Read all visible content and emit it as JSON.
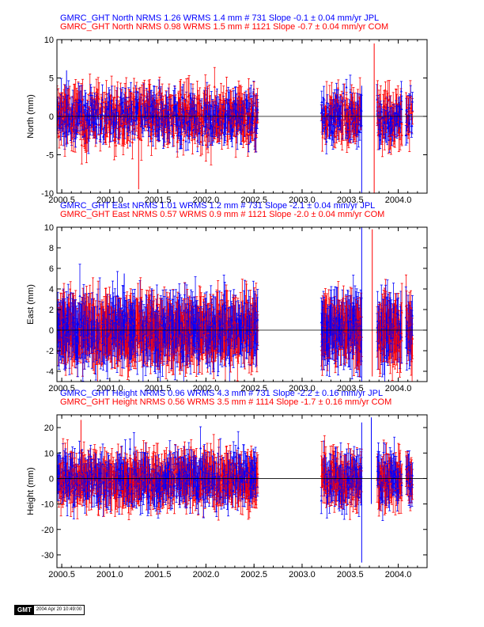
{
  "colors": {
    "series_a": "#0000ff",
    "series_b": "#ff0000",
    "axis": "#000000"
  },
  "footer": {
    "logo": "GMT",
    "timestamp": "2004 Apr 20 10:49:00"
  },
  "chart_data": [
    {
      "type": "scatter",
      "panel": "north",
      "title_lines": [
        "GMRC_GHT North NRMS 1.26 WRMS  1.4 mm # 731 Slope   -0.1 ±  0.04 mm/yr JPL",
        "GMRC_GHT North NRMS 0.98 WRMS  1.5 mm # 1121 Slope  -0.7 ±  0.04 mm/yr COM"
      ],
      "xlabel": "",
      "ylabel": "North (mm)",
      "xlim": [
        2000.45,
        2004.3
      ],
      "ylim": [
        -10,
        10
      ],
      "x_ticks": [
        "2000.5",
        "2001.0",
        "2001.5",
        "2002.0",
        "2002.5",
        "2003.0",
        "2003.5",
        "2004.0"
      ],
      "y_ticks": [
        "-10",
        "-5",
        "0",
        "5",
        "10"
      ],
      "zero_line": true,
      "data_segments": [
        [
          2000.45,
          2002.54
        ],
        [
          2003.2,
          2003.62
        ],
        [
          2003.78,
          2004.04
        ],
        [
          2004.08,
          2004.15
        ]
      ],
      "series": [
        {
          "name": "JPL",
          "color": "#0000ff",
          "scatter": 1.4,
          "errbar": 1.6
        },
        {
          "name": "COM",
          "color": "#ff0000",
          "scatter": 1.5,
          "errbar": 2.0
        }
      ],
      "annotations": {
        "spikes": [
          {
            "x": 2001.3,
            "low": -9.5,
            "high": 1.0,
            "series": "COM"
          },
          {
            "x": 2003.62,
            "low": -10.0,
            "high": 4.0,
            "series": "JPL"
          },
          {
            "x": 2003.75,
            "low": -10.0,
            "high": 9.5,
            "series": "COM"
          },
          {
            "x": 2000.55,
            "low": -4.0,
            "high": 6.0,
            "series": "JPL"
          }
        ]
      }
    },
    {
      "type": "scatter",
      "panel": "east",
      "title_lines": [
        "GMRC_GHT East NRMS 1.01 WRMS  1.2 mm # 731 Slope   -2.1 ±  0.04 mm/yr JPL",
        "GMRC_GHT East NRMS 0.57 WRMS  0.9 mm # 1121 Slope  -2.0 ±  0.04 mm/yr COM"
      ],
      "xlabel": "",
      "ylabel": "East (mm)",
      "xlim": [
        2000.45,
        2004.3
      ],
      "ylim": [
        -5,
        10
      ],
      "x_ticks": [
        "2000.5",
        "2001.0",
        "2001.5",
        "2002.0",
        "2002.5",
        "2003.0",
        "2003.5",
        "2004.0"
      ],
      "y_ticks": [
        "-4",
        "-2",
        "0",
        "2",
        "4",
        "6",
        "8",
        "10"
      ],
      "zero_line": true,
      "data_segments": [
        [
          2000.45,
          2002.54
        ],
        [
          2003.2,
          2003.62
        ],
        [
          2003.78,
          2004.04
        ],
        [
          2004.08,
          2004.15
        ]
      ],
      "series": [
        {
          "name": "JPL",
          "color": "#0000ff",
          "scatter": 1.2,
          "errbar": 2.2
        },
        {
          "name": "COM",
          "color": "#ff0000",
          "scatter": 0.9,
          "errbar": 2.4
        }
      ],
      "annotations": {
        "spikes": [
          {
            "x": 2003.62,
            "low": -5.0,
            "high": 10.0,
            "series": "JPL"
          },
          {
            "x": 2003.73,
            "low": -4.5,
            "high": 9.8,
            "series": "COM"
          },
          {
            "x": 2001.15,
            "low": -3.0,
            "high": 5.5,
            "series": "JPL"
          }
        ]
      }
    },
    {
      "type": "scatter",
      "panel": "height",
      "title_lines": [
        "GMRC_GHT Height NRMS 0.96 WRMS  4.3 mm # 731 Slope   -2.2 ±  0.16 mm/yr JPL",
        "GMRC_GHT Height NRMS 0.56 WRMS  3.5 mm # 1114 Slope  -1.7 ±  0.16 mm/yr COM"
      ],
      "xlabel": "",
      "ylabel": "Height (mm)",
      "xlim": [
        2000.45,
        2004.3
      ],
      "ylim": [
        -35,
        25
      ],
      "x_ticks": [
        "2000.5",
        "2001.0",
        "2001.5",
        "2002.0",
        "2002.5",
        "2003.0",
        "2003.5",
        "2004.0"
      ],
      "y_ticks": [
        "-30",
        "-20",
        "-10",
        "0",
        "10",
        "20"
      ],
      "zero_line": true,
      "data_segments": [
        [
          2000.45,
          2002.54
        ],
        [
          2003.2,
          2003.62
        ],
        [
          2003.78,
          2004.04
        ],
        [
          2004.08,
          2004.15
        ]
      ],
      "series": [
        {
          "name": "JPL",
          "color": "#0000ff",
          "scatter": 4.3,
          "errbar": 6.0
        },
        {
          "name": "COM",
          "color": "#ff0000",
          "scatter": 3.5,
          "errbar": 7.0
        }
      ],
      "annotations": {
        "spikes": [
          {
            "x": 2003.62,
            "low": -33.0,
            "high": 22.0,
            "series": "JPL"
          },
          {
            "x": 2003.72,
            "low": -10.0,
            "high": 24.0,
            "series": "JPL"
          },
          {
            "x": 2000.7,
            "low": -8.0,
            "high": 23.0,
            "series": "COM"
          }
        ]
      }
    }
  ]
}
